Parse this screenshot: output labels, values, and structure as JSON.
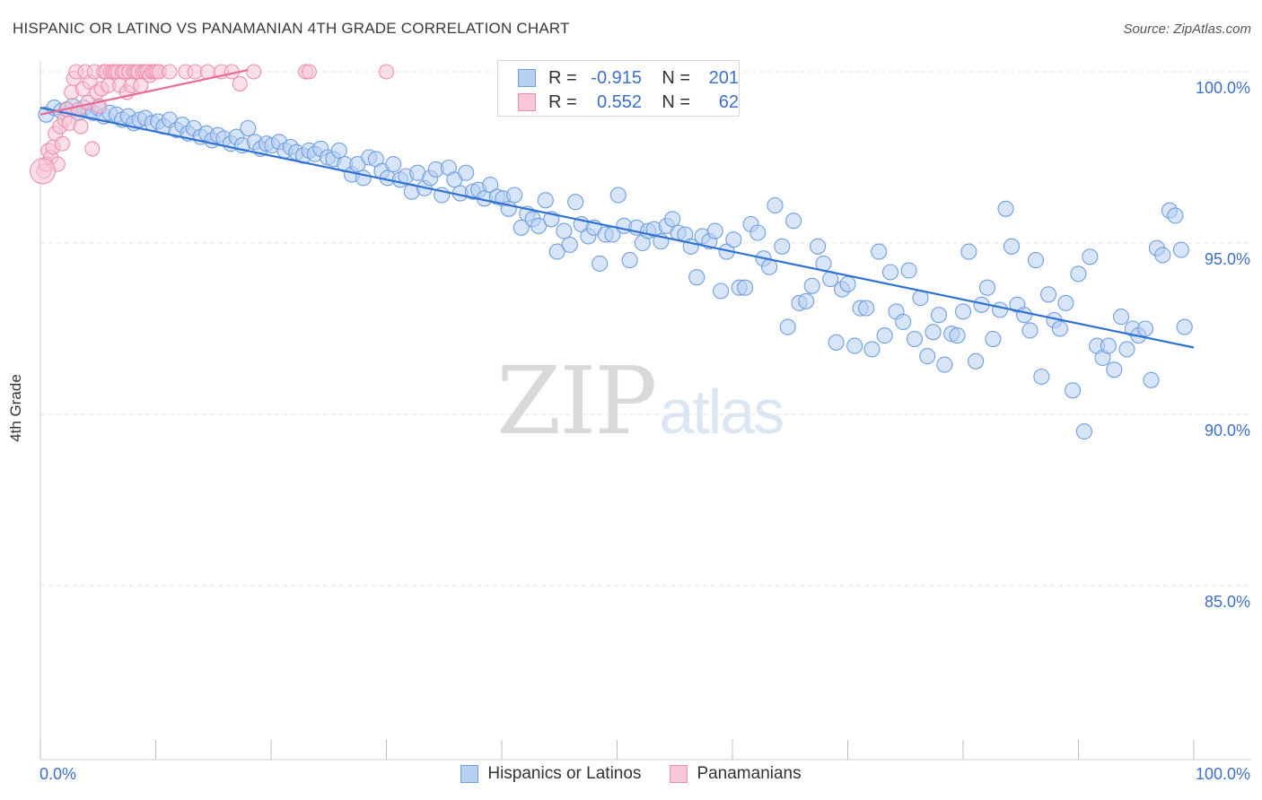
{
  "header": {
    "title": "HISPANIC OR LATINO VS PANAMANIAN 4TH GRADE CORRELATION CHART",
    "source": "Source: ZipAtlas.com"
  },
  "watermark": {
    "zip": "ZIP",
    "atlas": "atlas"
  },
  "legend": {
    "r_label": "R =",
    "n_label": "N =",
    "series1": {
      "r": "-0.915",
      "n": "201"
    },
    "series2": {
      "r": "0.552",
      "n": "62"
    }
  },
  "bottom_legend": {
    "series1": "Hispanics or Latinos",
    "series2": "Panamanians"
  },
  "colors": {
    "blue_fill": "#b8d0f3",
    "blue_stroke": "#6f9fe0",
    "blue_line": "#2f72d4",
    "pink_fill": "#f9c6d6",
    "pink_stroke": "#ec8fae",
    "pink_line": "#ea6b95",
    "tick_label": "#3d6fcc",
    "grid": "#e3e3e3"
  },
  "chart_data": {
    "type": "scatter",
    "title": "HISPANIC OR LATINO VS PANAMANIAN 4TH GRADE CORRELATION CHART",
    "xlabel": "",
    "ylabel": "4th Grade",
    "xlim": [
      0,
      100
    ],
    "ylim": [
      80.5,
      101.0
    ],
    "x_tick_labels": [
      "0.0%",
      "100.0%"
    ],
    "y_ticks": [
      100,
      95,
      90,
      85
    ],
    "y_tick_labels": [
      "100.0%",
      "95.0%",
      "90.0%",
      "85.0%"
    ],
    "x_minor_ticks": [
      0,
      10,
      20,
      30,
      40,
      50,
      60,
      70,
      80,
      90,
      100
    ],
    "grid": true,
    "legend_position": "top-center",
    "series": [
      {
        "name": "Hispanics or Latinos",
        "r": -0.915,
        "n": 201,
        "trend": {
          "x": [
            0,
            100
          ],
          "y": [
            98.95,
            91.95
          ]
        },
        "points": [
          [
            0.5,
            98.75
          ],
          [
            1.2,
            98.95
          ],
          [
            1.8,
            98.85
          ],
          [
            2.3,
            98.9
          ],
          [
            2.8,
            99.0
          ],
          [
            3.3,
            98.8
          ],
          [
            3.8,
            98.95
          ],
          [
            4.2,
            98.85
          ],
          [
            4.6,
            98.8
          ],
          [
            5.0,
            98.95
          ],
          [
            5.5,
            98.7
          ],
          [
            6.0,
            98.8
          ],
          [
            6.6,
            98.75
          ],
          [
            7.1,
            98.6
          ],
          [
            7.6,
            98.7
          ],
          [
            8.1,
            98.5
          ],
          [
            8.6,
            98.6
          ],
          [
            9.1,
            98.65
          ],
          [
            9.7,
            98.5
          ],
          [
            10.2,
            98.55
          ],
          [
            10.7,
            98.4
          ],
          [
            11.2,
            98.6
          ],
          [
            11.8,
            98.3
          ],
          [
            12.3,
            98.45
          ],
          [
            12.8,
            98.2
          ],
          [
            13.3,
            98.35
          ],
          [
            13.9,
            98.1
          ],
          [
            14.4,
            98.2
          ],
          [
            14.9,
            98.0
          ],
          [
            15.4,
            98.15
          ],
          [
            15.9,
            98.05
          ],
          [
            16.5,
            97.9
          ],
          [
            17.0,
            98.1
          ],
          [
            17.5,
            97.85
          ],
          [
            18.0,
            98.35
          ],
          [
            18.6,
            97.95
          ],
          [
            19.1,
            97.75
          ],
          [
            19.6,
            97.9
          ],
          [
            20.1,
            97.85
          ],
          [
            20.7,
            97.95
          ],
          [
            21.2,
            97.7
          ],
          [
            21.7,
            97.8
          ],
          [
            22.2,
            97.65
          ],
          [
            22.8,
            97.55
          ],
          [
            23.3,
            97.7
          ],
          [
            23.8,
            97.6
          ],
          [
            24.3,
            97.75
          ],
          [
            24.9,
            97.5
          ],
          [
            25.4,
            97.45
          ],
          [
            25.9,
            97.7
          ],
          [
            26.4,
            97.3
          ],
          [
            27.0,
            97.0
          ],
          [
            27.5,
            97.3
          ],
          [
            28.0,
            96.9
          ],
          [
            28.5,
            97.5
          ],
          [
            29.1,
            97.45
          ],
          [
            29.6,
            97.1
          ],
          [
            30.1,
            96.9
          ],
          [
            30.6,
            97.3
          ],
          [
            31.2,
            96.85
          ],
          [
            31.7,
            96.95
          ],
          [
            32.2,
            96.5
          ],
          [
            32.7,
            97.05
          ],
          [
            33.3,
            96.6
          ],
          [
            33.8,
            96.9
          ],
          [
            34.3,
            97.15
          ],
          [
            34.8,
            96.4
          ],
          [
            35.4,
            97.2
          ],
          [
            35.9,
            96.85
          ],
          [
            36.4,
            96.45
          ],
          [
            36.9,
            97.05
          ],
          [
            37.5,
            96.5
          ],
          [
            38.0,
            96.55
          ],
          [
            38.5,
            96.3
          ],
          [
            39.0,
            96.7
          ],
          [
            39.6,
            96.35
          ],
          [
            40.1,
            96.3
          ],
          [
            40.6,
            96.0
          ],
          [
            41.1,
            96.4
          ],
          [
            41.7,
            95.45
          ],
          [
            42.2,
            95.85
          ],
          [
            42.7,
            95.7
          ],
          [
            43.2,
            95.5
          ],
          [
            43.8,
            96.25
          ],
          [
            44.3,
            95.7
          ],
          [
            44.8,
            94.75
          ],
          [
            45.4,
            95.35
          ],
          [
            45.9,
            94.95
          ],
          [
            46.4,
            96.2
          ],
          [
            46.9,
            95.55
          ],
          [
            47.5,
            95.2
          ],
          [
            48.0,
            95.45
          ],
          [
            48.5,
            94.4
          ],
          [
            49.0,
            95.25
          ],
          [
            49.6,
            95.25
          ],
          [
            50.1,
            96.4
          ],
          [
            50.6,
            95.5
          ],
          [
            51.1,
            94.5
          ],
          [
            51.7,
            95.45
          ],
          [
            52.2,
            95.0
          ],
          [
            52.7,
            95.35
          ],
          [
            53.2,
            95.4
          ],
          [
            53.8,
            95.05
          ],
          [
            54.3,
            95.5
          ],
          [
            54.8,
            95.7
          ],
          [
            55.3,
            95.3
          ],
          [
            55.9,
            95.25
          ],
          [
            56.4,
            94.9
          ],
          [
            56.9,
            94.0
          ],
          [
            57.4,
            95.2
          ],
          [
            58.0,
            95.05
          ],
          [
            58.5,
            95.35
          ],
          [
            59.0,
            93.6
          ],
          [
            59.5,
            94.75
          ],
          [
            60.1,
            95.1
          ],
          [
            60.6,
            93.7
          ],
          [
            61.1,
            93.7
          ],
          [
            61.6,
            95.55
          ],
          [
            62.2,
            95.3
          ],
          [
            62.7,
            94.55
          ],
          [
            63.2,
            94.3
          ],
          [
            63.7,
            96.1
          ],
          [
            64.3,
            94.9
          ],
          [
            64.8,
            92.55
          ],
          [
            65.3,
            95.65
          ],
          [
            65.8,
            93.25
          ],
          [
            66.4,
            93.3
          ],
          [
            66.9,
            93.75
          ],
          [
            67.4,
            94.9
          ],
          [
            67.9,
            94.4
          ],
          [
            68.5,
            93.95
          ],
          [
            69.0,
            92.1
          ],
          [
            69.5,
            93.65
          ],
          [
            70.0,
            93.8
          ],
          [
            70.6,
            92.0
          ],
          [
            71.1,
            93.1
          ],
          [
            71.6,
            93.1
          ],
          [
            72.1,
            91.9
          ],
          [
            72.7,
            94.75
          ],
          [
            73.2,
            92.3
          ],
          [
            73.7,
            94.15
          ],
          [
            74.2,
            93.0
          ],
          [
            74.8,
            92.7
          ],
          [
            75.3,
            94.2
          ],
          [
            75.8,
            92.2
          ],
          [
            76.3,
            93.4
          ],
          [
            76.9,
            91.7
          ],
          [
            77.4,
            92.4
          ],
          [
            77.9,
            92.9
          ],
          [
            78.4,
            91.45
          ],
          [
            79.0,
            92.35
          ],
          [
            79.5,
            92.3
          ],
          [
            80.0,
            93.0
          ],
          [
            80.5,
            94.75
          ],
          [
            81.1,
            91.55
          ],
          [
            81.6,
            93.2
          ],
          [
            82.1,
            93.7
          ],
          [
            82.6,
            92.2
          ],
          [
            83.2,
            93.05
          ],
          [
            83.7,
            96.0
          ],
          [
            84.2,
            94.9
          ],
          [
            84.7,
            93.2
          ],
          [
            85.3,
            92.9
          ],
          [
            85.8,
            92.45
          ],
          [
            86.3,
            94.5
          ],
          [
            86.8,
            91.1
          ],
          [
            87.4,
            93.5
          ],
          [
            87.9,
            92.75
          ],
          [
            88.4,
            92.5
          ],
          [
            88.9,
            93.25
          ],
          [
            89.5,
            90.7
          ],
          [
            90.0,
            94.1
          ],
          [
            90.5,
            89.5
          ],
          [
            91.0,
            94.6
          ],
          [
            91.6,
            92.0
          ],
          [
            92.1,
            91.65
          ],
          [
            92.6,
            92.0
          ],
          [
            93.1,
            91.3
          ],
          [
            93.7,
            92.85
          ],
          [
            94.2,
            91.9
          ],
          [
            94.7,
            92.5
          ],
          [
            95.2,
            92.3
          ],
          [
            95.8,
            92.5
          ],
          [
            96.3,
            91.0
          ],
          [
            96.8,
            94.85
          ],
          [
            97.3,
            94.65
          ],
          [
            97.9,
            95.95
          ],
          [
            98.4,
            95.8
          ],
          [
            98.9,
            94.8
          ],
          [
            99.2,
            92.55
          ]
        ]
      },
      {
        "name": "Panamanians",
        "r": 0.552,
        "n": 62,
        "trend": {
          "x": [
            0,
            18
          ],
          "y": [
            98.75,
            100.05
          ]
        },
        "points": [
          [
            0.3,
            97.1
          ],
          [
            0.5,
            97.3
          ],
          [
            0.7,
            97.7
          ],
          [
            0.9,
            97.5
          ],
          [
            1.1,
            97.8
          ],
          [
            1.3,
            98.2
          ],
          [
            1.5,
            97.3
          ],
          [
            1.7,
            98.4
          ],
          [
            1.9,
            97.9
          ],
          [
            2.1,
            98.6
          ],
          [
            2.3,
            98.9
          ],
          [
            2.5,
            98.5
          ],
          [
            2.7,
            99.4
          ],
          [
            2.9,
            99.8
          ],
          [
            3.1,
            100.0
          ],
          [
            3.3,
            98.9
          ],
          [
            3.5,
            98.4
          ],
          [
            3.7,
            99.5
          ],
          [
            3.9,
            100.0
          ],
          [
            4.1,
            99.1
          ],
          [
            4.3,
            99.7
          ],
          [
            4.5,
            97.75
          ],
          [
            4.7,
            100.0
          ],
          [
            4.9,
            99.4
          ],
          [
            5.1,
            99.0
          ],
          [
            5.3,
            99.5
          ],
          [
            5.5,
            100.0
          ],
          [
            5.7,
            100.0
          ],
          [
            5.9,
            99.6
          ],
          [
            6.1,
            100.0
          ],
          [
            6.3,
            100.0
          ],
          [
            6.5,
            100.0
          ],
          [
            6.7,
            100.0
          ],
          [
            6.9,
            99.6
          ],
          [
            7.1,
            100.0
          ],
          [
            7.3,
            100.0
          ],
          [
            7.5,
            99.4
          ],
          [
            7.7,
            100.0
          ],
          [
            7.9,
            99.6
          ],
          [
            8.1,
            100.0
          ],
          [
            8.3,
            100.0
          ],
          [
            8.5,
            100.0
          ],
          [
            8.7,
            99.6
          ],
          [
            8.9,
            100.0
          ],
          [
            9.1,
            100.0
          ],
          [
            9.3,
            100.0
          ],
          [
            9.5,
            99.9
          ],
          [
            9.7,
            100.0
          ],
          [
            9.9,
            100.0
          ],
          [
            10.1,
            100.0
          ],
          [
            10.3,
            100.0
          ],
          [
            11.2,
            100.0
          ],
          [
            12.6,
            100.0
          ],
          [
            13.4,
            100.0
          ],
          [
            14.5,
            100.0
          ],
          [
            15.7,
            100.0
          ],
          [
            16.6,
            100.0
          ],
          [
            17.3,
            99.65
          ],
          [
            18.5,
            100.0
          ],
          [
            23.0,
            100.0
          ],
          [
            23.3,
            100.0
          ],
          [
            30.0,
            100.0
          ]
        ]
      }
    ]
  }
}
